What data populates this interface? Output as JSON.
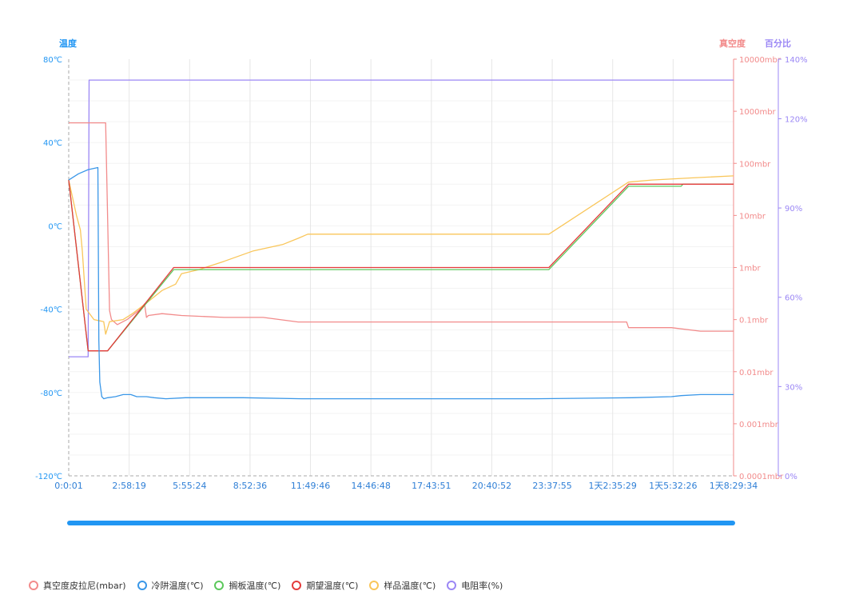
{
  "chart_data": {
    "type": "line",
    "axes": {
      "left": {
        "title": "温度",
        "unit": "℃",
        "min": -120,
        "max": 80,
        "ticks": [
          "80℃",
          "40℃",
          "0℃",
          "-40℃",
          "-80℃",
          "-120℃"
        ],
        "tick_values": [
          80,
          40,
          0,
          -40,
          -80,
          -120
        ],
        "color": "#2196f3"
      },
      "right_vacuum": {
        "title": "真空度",
        "scale": "log",
        "ticks": [
          "10000mbr",
          "1000mbr",
          "100mbr",
          "10mbr",
          "1mbr",
          "0.1mbr",
          "0.01mbr",
          "0.001mbr",
          "0.0001mbr"
        ],
        "tick_values": [
          10000,
          1000,
          100,
          10,
          1,
          0.1,
          0.01,
          0.001,
          0.0001
        ],
        "color": "#f28b8b"
      },
      "right_percent": {
        "title": "百分比",
        "min": 0,
        "max": 140,
        "ticks": [
          "140%",
          "120%",
          "90%",
          "60%",
          "30%",
          "0%"
        ],
        "tick_values": [
          140,
          120,
          90,
          60,
          30,
          0
        ],
        "color": "#9b87f5"
      }
    },
    "x_ticks": [
      "0:0:01",
      "2:58:19",
      "5:55:24",
      "8:52:36",
      "11:49:46",
      "14:46:48",
      "17:43:51",
      "20:40:52",
      "23:37:55",
      "1天2:35:29",
      "1天5:32:26",
      "1天8:29:34"
    ],
    "x_max_hours": 34.2,
    "series": [
      {
        "name": "真空度皮拉尼(mbar)",
        "axis": "right_vacuum",
        "color": "#f28b8b",
        "points": [
          [
            0,
            600
          ],
          [
            1.8,
            600
          ],
          [
            1.9,
            600
          ],
          [
            2.1,
            0.15
          ],
          [
            2.2,
            0.1
          ],
          [
            2.5,
            0.08
          ],
          [
            3,
            0.1
          ],
          [
            3.6,
            0.15
          ],
          [
            3.9,
            0.2
          ],
          [
            4.0,
            0.11
          ],
          [
            4.1,
            0.12
          ],
          [
            4.8,
            0.13
          ],
          [
            5.8,
            0.12
          ],
          [
            8,
            0.11
          ],
          [
            10,
            0.11
          ],
          [
            11.8,
            0.09
          ],
          [
            12,
            0.09
          ],
          [
            19,
            0.09
          ],
          [
            24,
            0.09
          ],
          [
            28.7,
            0.09
          ],
          [
            28.8,
            0.07
          ],
          [
            29,
            0.07
          ],
          [
            31,
            0.07
          ],
          [
            32.5,
            0.06
          ],
          [
            34.2,
            0.06
          ]
        ]
      },
      {
        "name": "冷阱温度(℃)",
        "axis": "left",
        "color": "#3a97e8",
        "points": [
          [
            0,
            22
          ],
          [
            0.5,
            25
          ],
          [
            1.0,
            27
          ],
          [
            1.5,
            28
          ],
          [
            1.55,
            -55
          ],
          [
            1.6,
            -75
          ],
          [
            1.7,
            -82
          ],
          [
            1.8,
            -83
          ],
          [
            2.0,
            -82.5
          ],
          [
            2.4,
            -82
          ],
          [
            2.8,
            -81
          ],
          [
            3.2,
            -81
          ],
          [
            3.5,
            -82
          ],
          [
            4.0,
            -82
          ],
          [
            4.4,
            -82.5
          ],
          [
            5,
            -83
          ],
          [
            6,
            -82.5
          ],
          [
            7,
            -82.5
          ],
          [
            9,
            -82.5
          ],
          [
            12,
            -83
          ],
          [
            16,
            -83
          ],
          [
            20,
            -83
          ],
          [
            24,
            -83
          ],
          [
            29,
            -82.5
          ],
          [
            31,
            -82
          ],
          [
            31.5,
            -81.5
          ],
          [
            32.5,
            -81
          ],
          [
            34.2,
            -81
          ]
        ]
      },
      {
        "name": "搁板温度(℃)",
        "axis": "left",
        "color": "#5cc85c",
        "points": [
          [
            0,
            22
          ],
          [
            1,
            -60
          ],
          [
            2,
            -60
          ],
          [
            5.4,
            -21
          ],
          [
            24.7,
            -21
          ],
          [
            28.8,
            19
          ],
          [
            31.5,
            19
          ],
          [
            31.6,
            20
          ],
          [
            34.2,
            20
          ]
        ]
      },
      {
        "name": "期望温度(℃)",
        "axis": "left",
        "color": "#e43b3b",
        "points": [
          [
            0,
            22
          ],
          [
            1,
            -60
          ],
          [
            2,
            -60
          ],
          [
            5.4,
            -20
          ],
          [
            24.7,
            -20
          ],
          [
            28.8,
            20
          ],
          [
            34.2,
            20
          ]
        ]
      },
      {
        "name": "样品温度(℃)",
        "axis": "left",
        "color": "#f9c65a",
        "points": [
          [
            0,
            22
          ],
          [
            0.4,
            5
          ],
          [
            0.6,
            -2
          ],
          [
            0.7,
            -12
          ],
          [
            0.9,
            -40
          ],
          [
            1.3,
            -45
          ],
          [
            1.8,
            -46
          ],
          [
            1.9,
            -52
          ],
          [
            2.1,
            -46
          ],
          [
            2.8,
            -45
          ],
          [
            3.3,
            -42
          ],
          [
            4,
            -37
          ],
          [
            4.8,
            -31
          ],
          [
            5.5,
            -28
          ],
          [
            5.8,
            -23
          ],
          [
            6.7,
            -21
          ],
          [
            8,
            -17
          ],
          [
            9.5,
            -12
          ],
          [
            11,
            -9
          ],
          [
            11.8,
            -6
          ],
          [
            12.3,
            -4
          ],
          [
            14,
            -4
          ],
          [
            20,
            -4
          ],
          [
            24.7,
            -4
          ],
          [
            28.8,
            21
          ],
          [
            30,
            22
          ],
          [
            32,
            23
          ],
          [
            34.2,
            24
          ]
        ]
      },
      {
        "name": "电阻率(%)",
        "axis": "right_percent",
        "color": "#9b87f5",
        "points": [
          [
            0,
            40
          ],
          [
            1.0,
            40
          ],
          [
            1.05,
            133
          ],
          [
            34.2,
            133
          ]
        ]
      }
    ]
  },
  "legend": [
    {
      "label": "真空度皮拉尼(mbar)",
      "color": "#f28b8b"
    },
    {
      "label": "冷阱温度(℃)",
      "color": "#3a97e8"
    },
    {
      "label": "搁板温度(℃)",
      "color": "#5cc85c"
    },
    {
      "label": "期望温度(℃)",
      "color": "#e43b3b"
    },
    {
      "label": "样品温度(℃)",
      "color": "#f9c65a"
    },
    {
      "label": "电阻率(%)",
      "color": "#9b87f5"
    }
  ]
}
